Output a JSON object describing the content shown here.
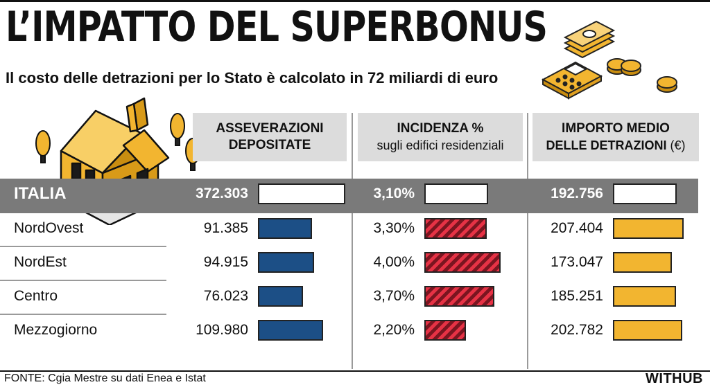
{
  "header": {
    "title": "L’IMPATTO DEL SUPERBONUS",
    "subtitle": "Il costo delle detrazioni per lo Stato è calcolato in 72 miliardi di euro"
  },
  "columns": {
    "asseverazioni": {
      "line1": "ASSEVERAZIONI",
      "line2": "DEPOSITATE"
    },
    "incidenza": {
      "line1": "INCIDENZA %",
      "line2": "sugli edifici residenziali"
    },
    "importo": {
      "line1": "IMPORTO MEDIO",
      "line2_bold": "DELLE DETRAZIONI",
      "line2_unit": "(€)"
    }
  },
  "italia": {
    "label": "ITALIA",
    "asseverazioni": "372.303",
    "incidenza": "3,10%",
    "importo": "192.756"
  },
  "rows": [
    {
      "label": "NordOvest",
      "asseverazioni": "91.385",
      "incidenza": "3,30%",
      "importo": "207.404"
    },
    {
      "label": "NordEst",
      "asseverazioni": "94.915",
      "incidenza": "4,00%",
      "importo": "173.047"
    },
    {
      "label": "Centro",
      "asseverazioni": "76.023",
      "incidenza": "3,70%",
      "importo": "185.251"
    },
    {
      "label": "Mezzogiorno",
      "asseverazioni": "109.980",
      "incidenza": "2,20%",
      "importo": "202.782"
    }
  ],
  "chart_data": {
    "type": "table",
    "categories": [
      "ITALIA",
      "NordOvest",
      "NordEst",
      "Centro",
      "Mezzogiorno"
    ],
    "series": [
      {
        "name": "ASSEVERAZIONI DEPOSITATE",
        "values": [
          372303,
          91385,
          94915,
          76023,
          109980
        ]
      },
      {
        "name": "INCIDENZA % sugli edifici residenziali",
        "values": [
          3.1,
          3.3,
          4.0,
          3.7,
          2.2
        ]
      },
      {
        "name": "IMPORTO MEDIO DELLE DETRAZIONI (€)",
        "values": [
          192756,
          207404,
          173047,
          185251,
          202782
        ]
      }
    ],
    "colors": {
      "asseverazioni": "#1c4f86",
      "incidenza": "#e63245",
      "importo": "#f2b530"
    }
  },
  "footer": {
    "source": "FONTE: Cgia Mestre su dati Enea e Istat",
    "brand": "WITHUB"
  },
  "illustrations": [
    "house-icon",
    "tree-icon",
    "banknotes-icon",
    "calculator-icon",
    "coins-icon"
  ]
}
